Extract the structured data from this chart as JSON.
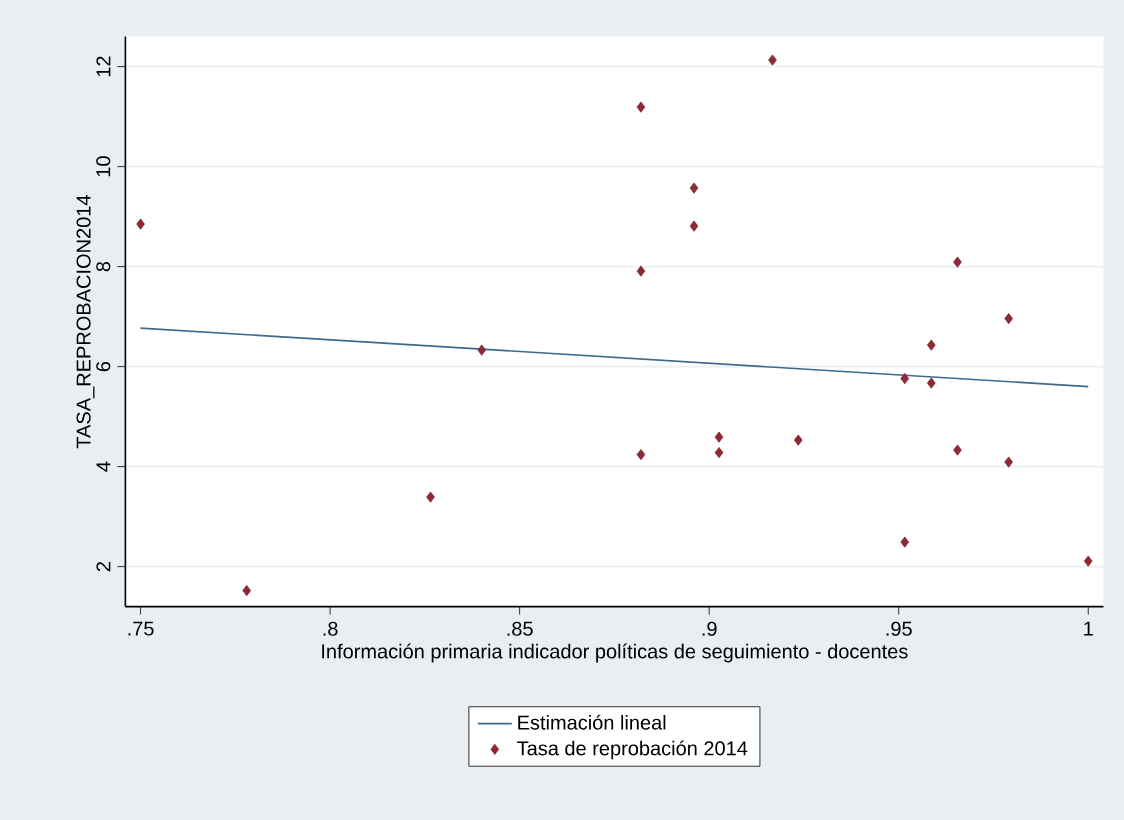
{
  "chart_data": {
    "type": "scatter",
    "xlabel": "Información primaria indicador políticas de seguimiento - docentes",
    "ylabel": "TASA_REPROBACION2014",
    "xlim": [
      0.746,
      1.004
    ],
    "ylim": [
      1.2,
      12.6
    ],
    "xticks": [
      {
        "value": 0.75,
        "label": ".75"
      },
      {
        "value": 0.8,
        "label": ".8"
      },
      {
        "value": 0.85,
        "label": ".85"
      },
      {
        "value": 0.9,
        "label": ".9"
      },
      {
        "value": 0.95,
        "label": ".95"
      },
      {
        "value": 1,
        "label": "1"
      }
    ],
    "yticks": [
      2,
      4,
      6,
      8,
      10,
      12
    ],
    "grid": "y",
    "legend": "bottom",
    "series": [
      {
        "name": "Estimación lineal",
        "type": "line",
        "marker": "none",
        "color": "#3c6a8c",
        "x": [
          0.75,
          1
        ],
        "values": [
          6.77,
          5.6
        ]
      },
      {
        "name": "Tasa de reprobación 2014",
        "marker": "diamond",
        "color": "#8b2a33",
        "x": [
          0.75,
          0.778,
          0.8265,
          0.84,
          0.9167,
          0.882,
          0.896,
          0.896,
          0.882,
          0.9655,
          0.979,
          0.9586,
          0.9516,
          0.9586,
          0.9026,
          0.9026,
          0.882,
          0.9235,
          0.9655,
          0.979,
          0.9516,
          1.0
        ],
        "values": [
          8.85,
          1.52,
          3.39,
          6.33,
          12.13,
          11.19,
          9.57,
          8.81,
          7.91,
          8.09,
          6.96,
          6.43,
          5.76,
          5.67,
          4.59,
          4.28,
          4.24,
          4.53,
          4.33,
          4.09,
          2.49,
          2.11
        ]
      }
    ]
  }
}
